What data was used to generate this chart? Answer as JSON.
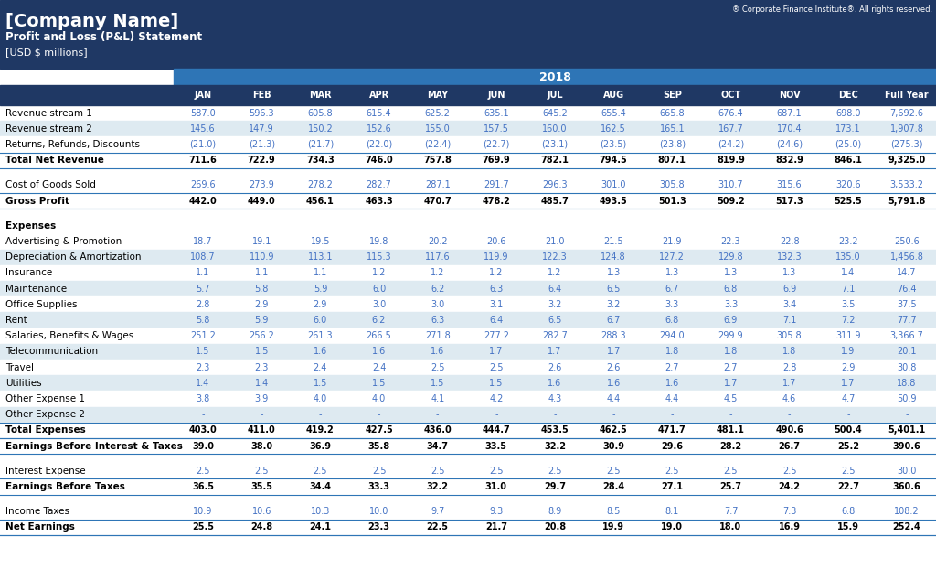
{
  "title": "[Company Name]",
  "subtitle": "Profit and Loss (P&L) Statement",
  "unit": "[USD $ millions]",
  "copyright": "® Corporate Finance Institute®. All rights reserved.",
  "year": "2018",
  "header_bg": "#1F3864",
  "subheader_bg": "#2E75B6",
  "blue_text": "#4472C4",
  "black_text": "#000000",
  "row_alt_blue": "#DEEAF1",
  "row_white": "#FFFFFF",
  "columns": [
    "JAN",
    "FEB",
    "MAR",
    "APR",
    "MAY",
    "JUN",
    "JUL",
    "AUG",
    "SEP",
    "OCT",
    "NOV",
    "DEC",
    "Full Year"
  ],
  "rows": [
    {
      "label": "Revenue stream 1",
      "values": [
        "587.0",
        "596.3",
        "605.8",
        "615.4",
        "625.2",
        "635.1",
        "645.2",
        "655.4",
        "665.8",
        "676.4",
        "687.1",
        "698.0",
        "7,692.6"
      ],
      "style": "blue"
    },
    {
      "label": "Revenue stream 2",
      "values": [
        "145.6",
        "147.9",
        "150.2",
        "152.6",
        "155.0",
        "157.5",
        "160.0",
        "162.5",
        "165.1",
        "167.7",
        "170.4",
        "173.1",
        "1,907.8"
      ],
      "style": "blue"
    },
    {
      "label": "Returns, Refunds, Discounts",
      "values": [
        "(21.0)",
        "(21.3)",
        "(21.7)",
        "(22.0)",
        "(22.4)",
        "(22.7)",
        "(23.1)",
        "(23.5)",
        "(23.8)",
        "(24.2)",
        "(24.6)",
        "(25.0)",
        "(275.3)"
      ],
      "style": "blue"
    },
    {
      "label": "Total Net Revenue",
      "values": [
        "711.6",
        "722.9",
        "734.3",
        "746.0",
        "757.8",
        "769.9",
        "782.1",
        "794.5",
        "807.1",
        "819.9",
        "832.9",
        "846.1",
        "9,325.0"
      ],
      "style": "bold"
    },
    {
      "label": "",
      "values": [
        "",
        "",
        "",
        "",
        "",
        "",
        "",
        "",
        "",
        "",
        "",
        "",
        ""
      ],
      "style": "spacer"
    },
    {
      "label": "Cost of Goods Sold",
      "values": [
        "269.6",
        "273.9",
        "278.2",
        "282.7",
        "287.1",
        "291.7",
        "296.3",
        "301.0",
        "305.8",
        "310.7",
        "315.6",
        "320.6",
        "3,533.2"
      ],
      "style": "blue"
    },
    {
      "label": "Gross Profit",
      "values": [
        "442.0",
        "449.0",
        "456.1",
        "463.3",
        "470.7",
        "478.2",
        "485.7",
        "493.5",
        "501.3",
        "509.2",
        "517.3",
        "525.5",
        "5,791.8"
      ],
      "style": "bold"
    },
    {
      "label": "",
      "values": [
        "",
        "",
        "",
        "",
        "",
        "",
        "",
        "",
        "",
        "",
        "",
        "",
        ""
      ],
      "style": "spacer"
    },
    {
      "label": "Expenses",
      "values": [
        "",
        "",
        "",
        "",
        "",
        "",
        "",
        "",
        "",
        "",
        "",
        "",
        ""
      ],
      "style": "section"
    },
    {
      "label": "Advertising & Promotion",
      "values": [
        "18.7",
        "19.1",
        "19.5",
        "19.8",
        "20.2",
        "20.6",
        "21.0",
        "21.5",
        "21.9",
        "22.3",
        "22.8",
        "23.2",
        "250.6"
      ],
      "style": "blue"
    },
    {
      "label": "Depreciation & Amortization",
      "values": [
        "108.7",
        "110.9",
        "113.1",
        "115.3",
        "117.6",
        "119.9",
        "122.3",
        "124.8",
        "127.2",
        "129.8",
        "132.3",
        "135.0",
        "1,456.8"
      ],
      "style": "blue"
    },
    {
      "label": "Insurance",
      "values": [
        "1.1",
        "1.1",
        "1.1",
        "1.2",
        "1.2",
        "1.2",
        "1.2",
        "1.3",
        "1.3",
        "1.3",
        "1.3",
        "1.4",
        "14.7"
      ],
      "style": "blue"
    },
    {
      "label": "Maintenance",
      "values": [
        "5.7",
        "5.8",
        "5.9",
        "6.0",
        "6.2",
        "6.3",
        "6.4",
        "6.5",
        "6.7",
        "6.8",
        "6.9",
        "7.1",
        "76.4"
      ],
      "style": "blue"
    },
    {
      "label": "Office Supplies",
      "values": [
        "2.8",
        "2.9",
        "2.9",
        "3.0",
        "3.0",
        "3.1",
        "3.2",
        "3.2",
        "3.3",
        "3.3",
        "3.4",
        "3.5",
        "37.5"
      ],
      "style": "blue"
    },
    {
      "label": "Rent",
      "values": [
        "5.8",
        "5.9",
        "6.0",
        "6.2",
        "6.3",
        "6.4",
        "6.5",
        "6.7",
        "6.8",
        "6.9",
        "7.1",
        "7.2",
        "77.7"
      ],
      "style": "blue"
    },
    {
      "label": "Salaries, Benefits & Wages",
      "values": [
        "251.2",
        "256.2",
        "261.3",
        "266.5",
        "271.8",
        "277.2",
        "282.7",
        "288.3",
        "294.0",
        "299.9",
        "305.8",
        "311.9",
        "3,366.7"
      ],
      "style": "blue"
    },
    {
      "label": "Telecommunication",
      "values": [
        "1.5",
        "1.5",
        "1.6",
        "1.6",
        "1.6",
        "1.7",
        "1.7",
        "1.7",
        "1.8",
        "1.8",
        "1.8",
        "1.9",
        "20.1"
      ],
      "style": "blue"
    },
    {
      "label": "Travel",
      "values": [
        "2.3",
        "2.3",
        "2.4",
        "2.4",
        "2.5",
        "2.5",
        "2.6",
        "2.6",
        "2.7",
        "2.7",
        "2.8",
        "2.9",
        "30.8"
      ],
      "style": "blue"
    },
    {
      "label": "Utilities",
      "values": [
        "1.4",
        "1.4",
        "1.5",
        "1.5",
        "1.5",
        "1.5",
        "1.6",
        "1.6",
        "1.6",
        "1.7",
        "1.7",
        "1.7",
        "18.8"
      ],
      "style": "blue"
    },
    {
      "label": "Other Expense 1",
      "values": [
        "3.8",
        "3.9",
        "4.0",
        "4.0",
        "4.1",
        "4.2",
        "4.3",
        "4.4",
        "4.4",
        "4.5",
        "4.6",
        "4.7",
        "50.9"
      ],
      "style": "blue"
    },
    {
      "label": "Other Expense 2",
      "values": [
        "-",
        "-",
        "-",
        "-",
        "-",
        "-",
        "-",
        "-",
        "-",
        "-",
        "-",
        "-",
        "-"
      ],
      "style": "blue"
    },
    {
      "label": "Total Expenses",
      "values": [
        "403.0",
        "411.0",
        "419.2",
        "427.5",
        "436.0",
        "444.7",
        "453.5",
        "462.5",
        "471.7",
        "481.1",
        "490.6",
        "500.4",
        "5,401.1"
      ],
      "style": "bold_line"
    },
    {
      "label": "Earnings Before Interest & Taxes",
      "values": [
        "39.0",
        "38.0",
        "36.9",
        "35.8",
        "34.7",
        "33.5",
        "32.2",
        "30.9",
        "29.6",
        "28.2",
        "26.7",
        "25.2",
        "390.6"
      ],
      "style": "bold"
    },
    {
      "label": "",
      "values": [
        "",
        "",
        "",
        "",
        "",
        "",
        "",
        "",
        "",
        "",
        "",
        "",
        ""
      ],
      "style": "spacer"
    },
    {
      "label": "Interest Expense",
      "values": [
        "2.5",
        "2.5",
        "2.5",
        "2.5",
        "2.5",
        "2.5",
        "2.5",
        "2.5",
        "2.5",
        "2.5",
        "2.5",
        "2.5",
        "30.0"
      ],
      "style": "blue"
    },
    {
      "label": "Earnings Before Taxes",
      "values": [
        "36.5",
        "35.5",
        "34.4",
        "33.3",
        "32.2",
        "31.0",
        "29.7",
        "28.4",
        "27.1",
        "25.7",
        "24.2",
        "22.7",
        "360.6"
      ],
      "style": "bold"
    },
    {
      "label": "",
      "values": [
        "",
        "",
        "",
        "",
        "",
        "",
        "",
        "",
        "",
        "",
        "",
        "",
        ""
      ],
      "style": "spacer"
    },
    {
      "label": "Income Taxes",
      "values": [
        "10.9",
        "10.6",
        "10.3",
        "10.0",
        "9.7",
        "9.3",
        "8.9",
        "8.5",
        "8.1",
        "7.7",
        "7.3",
        "6.8",
        "108.2"
      ],
      "style": "blue"
    },
    {
      "label": "Net Earnings",
      "values": [
        "25.5",
        "24.8",
        "24.1",
        "23.3",
        "22.5",
        "21.7",
        "20.8",
        "19.9",
        "19.0",
        "18.0",
        "16.9",
        "15.9",
        "252.4"
      ],
      "style": "bold"
    }
  ]
}
